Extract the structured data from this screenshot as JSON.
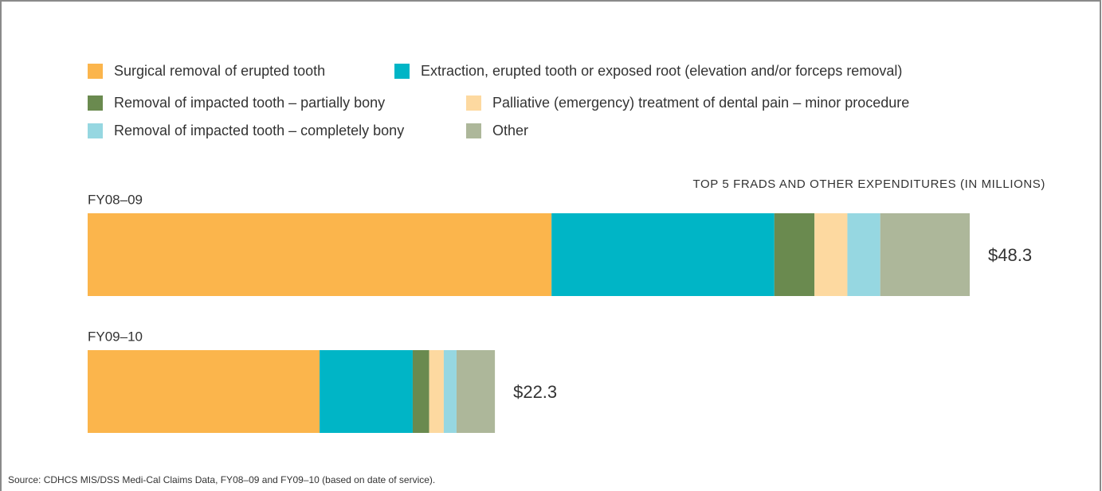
{
  "chart_data": {
    "type": "stacked-bar-horizontal",
    "subtitle": "TOP 5 FRADS AND OTHER EXPENDITURES (IN MILLIONS)",
    "categories": [
      "FY08–09",
      "FY09–10"
    ],
    "series": [
      {
        "name": "Surgical removal of erupted tooth",
        "color": "#fbb54c",
        "values": [
          25.4,
          12.7
        ]
      },
      {
        "name": "Extraction, erupted tooth or exposed root (elevation and/or forceps removal)",
        "color": "#00b5c6",
        "values": [
          12.2,
          5.1
        ]
      },
      {
        "name": "Removal of impacted tooth – partially bony",
        "color": "#6a8a4f",
        "values": [
          2.2,
          0.9
        ]
      },
      {
        "name": "Palliative (emergency) treatment of dental pain – minor procedure",
        "color": "#fdd9a0",
        "values": [
          1.8,
          0.8
        ]
      },
      {
        "name": "Removal of impacted tooth – completely bony",
        "color": "#96d7e1",
        "values": [
          1.8,
          0.7
        ]
      },
      {
        "name": "Other",
        "color": "#adb79a",
        "values": [
          4.9,
          2.1
        ]
      }
    ],
    "totals": [
      48.3,
      22.3
    ],
    "total_labels": [
      "$48.3",
      "$22.3"
    ],
    "source": "Source: CDHCS MIS/DSS Medi-Cal Claims Data, FY08–09 and FY09–10 (based on date of service)."
  }
}
